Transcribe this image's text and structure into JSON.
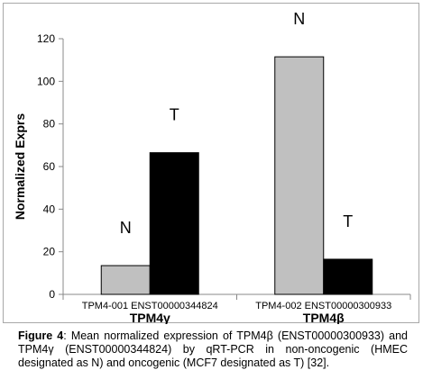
{
  "chart_data": {
    "type": "bar",
    "ylabel": "Normalized Exprs",
    "ylim": [
      0,
      120
    ],
    "yticks": [
      0,
      20,
      40,
      60,
      80,
      100,
      120
    ],
    "groups": [
      {
        "label": "TPM4-001 ENST00000344824",
        "gene": "TPM4γ"
      },
      {
        "label": "TPM4-002 ENST00000300933",
        "gene": "TPM4β"
      }
    ],
    "series": [
      {
        "label": "N",
        "color": "#c0c0c0",
        "values": [
          13.5,
          111.5
        ]
      },
      {
        "label": "T",
        "color": "#000000",
        "values": [
          66.5,
          16.5
        ]
      }
    ]
  },
  "caption": {
    "prefix": "Figure 4",
    "text": ": Mean normalized expression of TPM4β (ENST00000300933) and TPM4γ (ENST00000344824) by qRT-PCR in non-oncogenic (HMEC designated as N) and oncogenic (MCF7 designated as T) [32]."
  }
}
